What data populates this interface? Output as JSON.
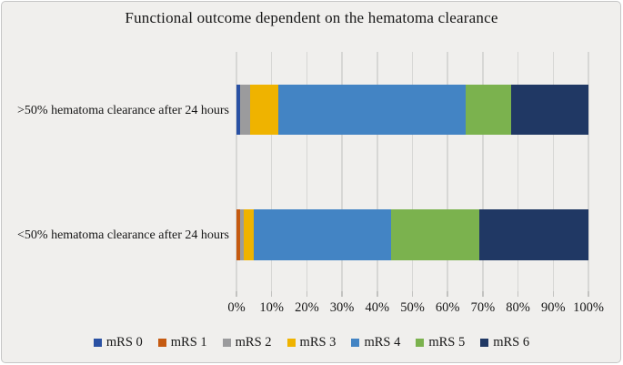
{
  "figure": {
    "background_color": "#f0efed",
    "border_color": "#c6c6c6",
    "gridline_color": "#d7d7d5",
    "text_color": "#161616"
  },
  "chart_data": {
    "type": "bar",
    "orientation": "horizontal",
    "stacked": true,
    "title": "Functional outcome dependent on the hematoma clearance",
    "categories": [
      ">50% hematoma clearance after 24 hours",
      "<50% hematoma clearance after 24 hours"
    ],
    "series": [
      {
        "name": "mRS 0",
        "color": "#2a51a3",
        "values": [
          1,
          0
        ]
      },
      {
        "name": "mRS 1",
        "color": "#c55a11",
        "values": [
          0,
          1
        ]
      },
      {
        "name": "mRS 2",
        "color": "#9b9b9d",
        "values": [
          3,
          1
        ]
      },
      {
        "name": "mRS 3",
        "color": "#efb300",
        "values": [
          8,
          3
        ]
      },
      {
        "name": "mRS 4",
        "color": "#4384c4",
        "values": [
          53,
          39
        ]
      },
      {
        "name": "mRS 5",
        "color": "#7bb24e",
        "values": [
          13,
          25
        ]
      },
      {
        "name": "mRS 6",
        "color": "#203864",
        "values": [
          22,
          31
        ]
      }
    ],
    "x_axis": {
      "min": 0,
      "max": 100,
      "tick_step": 10,
      "tick_labels": [
        "0%",
        "10%",
        "20%",
        "30%",
        "40%",
        "50%",
        "60%",
        "70%",
        "80%",
        "90%",
        "100%"
      ]
    },
    "legend_position": "bottom",
    "grid": true
  }
}
